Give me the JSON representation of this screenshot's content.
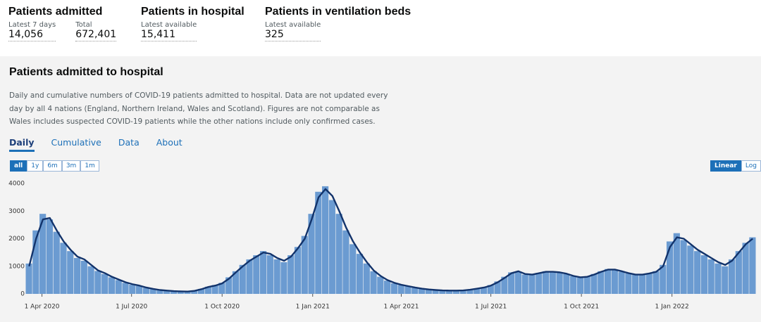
{
  "headline": [
    {
      "title": "Patients admitted",
      "items": [
        {
          "label": "Latest 7 days",
          "value": "14,056"
        },
        {
          "label": "Total",
          "value": "672,401"
        }
      ]
    },
    {
      "title": "Patients in hospital",
      "items": [
        {
          "label": "Latest available",
          "value": "15,411"
        }
      ]
    },
    {
      "title": "Patients in ventilation beds",
      "items": [
        {
          "label": "Latest available",
          "value": "325"
        }
      ]
    }
  ],
  "panel": {
    "title": "Patients admitted to hospital",
    "description": "Daily and cumulative numbers of COVID-19 patients admitted to hospital. Data are not updated every day by all 4 nations (England, Northern Ireland, Wales and Scotland). Figures are not comparable as Wales includes suspected COVID-19 patients while the other nations include only confirmed cases.",
    "tabs": [
      "Daily",
      "Cumulative",
      "Data",
      "About"
    ],
    "ranges": [
      "all",
      "1y",
      "6m",
      "3m",
      "1m"
    ],
    "scales": [
      "Linear",
      "Log"
    ]
  },
  "chart_data": {
    "type": "bar",
    "x": [
      "2020-03-19",
      "2020-03-26",
      "2020-04-02",
      "2020-04-09",
      "2020-04-16",
      "2020-04-23",
      "2020-04-30",
      "2020-05-07",
      "2020-05-14",
      "2020-05-21",
      "2020-05-28",
      "2020-06-04",
      "2020-06-11",
      "2020-06-18",
      "2020-06-25",
      "2020-07-02",
      "2020-07-09",
      "2020-07-16",
      "2020-07-23",
      "2020-07-30",
      "2020-08-06",
      "2020-08-13",
      "2020-08-20",
      "2020-08-27",
      "2020-09-03",
      "2020-09-10",
      "2020-09-17",
      "2020-09-24",
      "2020-10-01",
      "2020-10-08",
      "2020-10-15",
      "2020-10-22",
      "2020-10-29",
      "2020-11-05",
      "2020-11-12",
      "2020-11-19",
      "2020-11-26",
      "2020-12-03",
      "2020-12-10",
      "2020-12-17",
      "2020-12-24",
      "2020-12-31",
      "2021-01-07",
      "2021-01-14",
      "2021-01-21",
      "2021-01-28",
      "2021-02-04",
      "2021-02-11",
      "2021-02-18",
      "2021-02-25",
      "2021-03-04",
      "2021-03-11",
      "2021-03-18",
      "2021-03-25",
      "2021-04-01",
      "2021-04-08",
      "2021-04-15",
      "2021-04-22",
      "2021-04-29",
      "2021-05-06",
      "2021-05-13",
      "2021-05-20",
      "2021-05-27",
      "2021-06-03",
      "2021-06-10",
      "2021-06-17",
      "2021-06-24",
      "2021-07-01",
      "2021-07-08",
      "2021-07-15",
      "2021-07-22",
      "2021-07-29",
      "2021-08-05",
      "2021-08-12",
      "2021-08-19",
      "2021-08-26",
      "2021-09-02",
      "2021-09-09",
      "2021-09-16",
      "2021-09-23",
      "2021-09-30",
      "2021-10-07",
      "2021-10-14",
      "2021-10-21",
      "2021-10-28",
      "2021-11-04",
      "2021-11-11",
      "2021-11-18",
      "2021-11-25",
      "2021-12-02",
      "2021-12-09",
      "2021-12-16",
      "2021-12-23",
      "2021-12-30",
      "2022-01-06",
      "2022-01-13",
      "2022-01-20",
      "2022-01-27",
      "2022-02-03",
      "2022-02-10",
      "2022-02-17",
      "2022-02-24",
      "2022-03-03",
      "2022-03-10",
      "2022-03-17",
      "2022-03-24"
    ],
    "series": [
      {
        "color": "#6b9bd1",
        "values": [
          1100,
          2300,
          2900,
          2700,
          2250,
          1850,
          1550,
          1300,
          1200,
          1000,
          830,
          720,
          600,
          500,
          400,
          330,
          290,
          220,
          170,
          130,
          110,
          95,
          85,
          80,
          120,
          180,
          260,
          320,
          400,
          600,
          820,
          1050,
          1250,
          1400,
          1550,
          1400,
          1250,
          1150,
          1400,
          1700,
          2100,
          2900,
          3700,
          3900,
          3400,
          2900,
          2300,
          1800,
          1450,
          1100,
          820,
          620,
          480,
          380,
          320,
          270,
          220,
          180,
          150,
          135,
          120,
          115,
          118,
          130,
          160,
          200,
          240,
          320,
          450,
          620,
          780,
          800,
          700,
          690,
          760,
          820,
          780,
          760,
          720,
          640,
          590,
          630,
          720,
          820,
          900,
          860,
          800,
          740,
          690,
          690,
          750,
          820,
          1050,
          1900,
          2200,
          1950,
          1750,
          1550,
          1400,
          1250,
          1100,
          1000,
          1250,
          1550,
          1850,
          2050
        ]
      },
      {
        "type": "line",
        "color": "#12336b",
        "values": [
          1000,
          2000,
          2700,
          2750,
          2300,
          1900,
          1600,
          1350,
          1250,
          1050,
          850,
          750,
          620,
          520,
          420,
          350,
          300,
          230,
          180,
          140,
          120,
          100,
          90,
          85,
          110,
          170,
          250,
          300,
          380,
          550,
          780,
          1000,
          1200,
          1350,
          1500,
          1450,
          1300,
          1200,
          1350,
          1650,
          2000,
          2700,
          3500,
          3800,
          3550,
          3000,
          2400,
          1900,
          1500,
          1150,
          850,
          650,
          500,
          400,
          330,
          280,
          230,
          190,
          160,
          140,
          125,
          120,
          120,
          125,
          150,
          190,
          230,
          300,
          420,
          580,
          750,
          820,
          720,
          700,
          750,
          800,
          800,
          780,
          730,
          650,
          600,
          620,
          700,
          800,
          880,
          880,
          820,
          750,
          700,
          700,
          740,
          800,
          1000,
          1700,
          2050,
          2000,
          1800,
          1600,
          1450,
          1300,
          1150,
          1050,
          1200,
          1500,
          1800,
          2000
        ]
      }
    ],
    "xlim": [
      "2020-03-18",
      "2022-03-26"
    ],
    "xticks": [
      {
        "value": "2020-04-01",
        "label": "1 Apr 2020"
      },
      {
        "value": "2020-07-01",
        "label": "1 Jul 2020"
      },
      {
        "value": "2020-10-01",
        "label": "1 Oct 2020"
      },
      {
        "value": "2021-01-01",
        "label": "1 Jan 2021"
      },
      {
        "value": "2021-04-01",
        "label": "1 Apr 2021"
      },
      {
        "value": "2021-07-01",
        "label": "1 Jul 2021"
      },
      {
        "value": "2021-10-01",
        "label": "1 Oct 2021"
      },
      {
        "value": "2022-01-01",
        "label": "1 Jan 2022"
      }
    ],
    "ylim": [
      0,
      4000
    ],
    "yticks": [
      0,
      1000,
      2000,
      3000,
      4000
    ],
    "grid": false
  }
}
